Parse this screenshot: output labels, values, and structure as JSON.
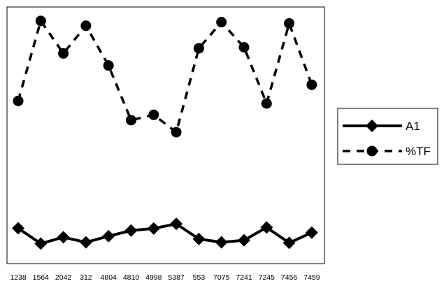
{
  "chart_data": {
    "type": "line",
    "title": "",
    "xlabel": "",
    "ylabel": "",
    "categories": [
      "1238",
      "1564",
      "2042",
      "312",
      "4804",
      "4810",
      "4998",
      "5387",
      "553",
      "7075",
      "7241",
      "7245",
      "7456",
      "7459"
    ],
    "ylim": [
      0,
      100
    ],
    "grid": false,
    "legend_position": "right",
    "series": [
      {
        "name": "A1",
        "style": "solid",
        "marker": "diamond",
        "color": "#000000",
        "values": [
          13.8,
          7.8,
          10.3,
          8.3,
          10.7,
          12.9,
          13.7,
          15.5,
          9.6,
          8.3,
          9.1,
          14.1,
          8.1,
          12.1
        ]
      },
      {
        "name": "%TF",
        "style": "dashed",
        "marker": "circle",
        "color": "#000000",
        "values": [
          63.4,
          94.6,
          81.9,
          92.7,
          77.2,
          55.9,
          58.0,
          51.2,
          83.9,
          94.1,
          84.3,
          62.4,
          93.6,
          69.7
        ]
      }
    ]
  }
}
